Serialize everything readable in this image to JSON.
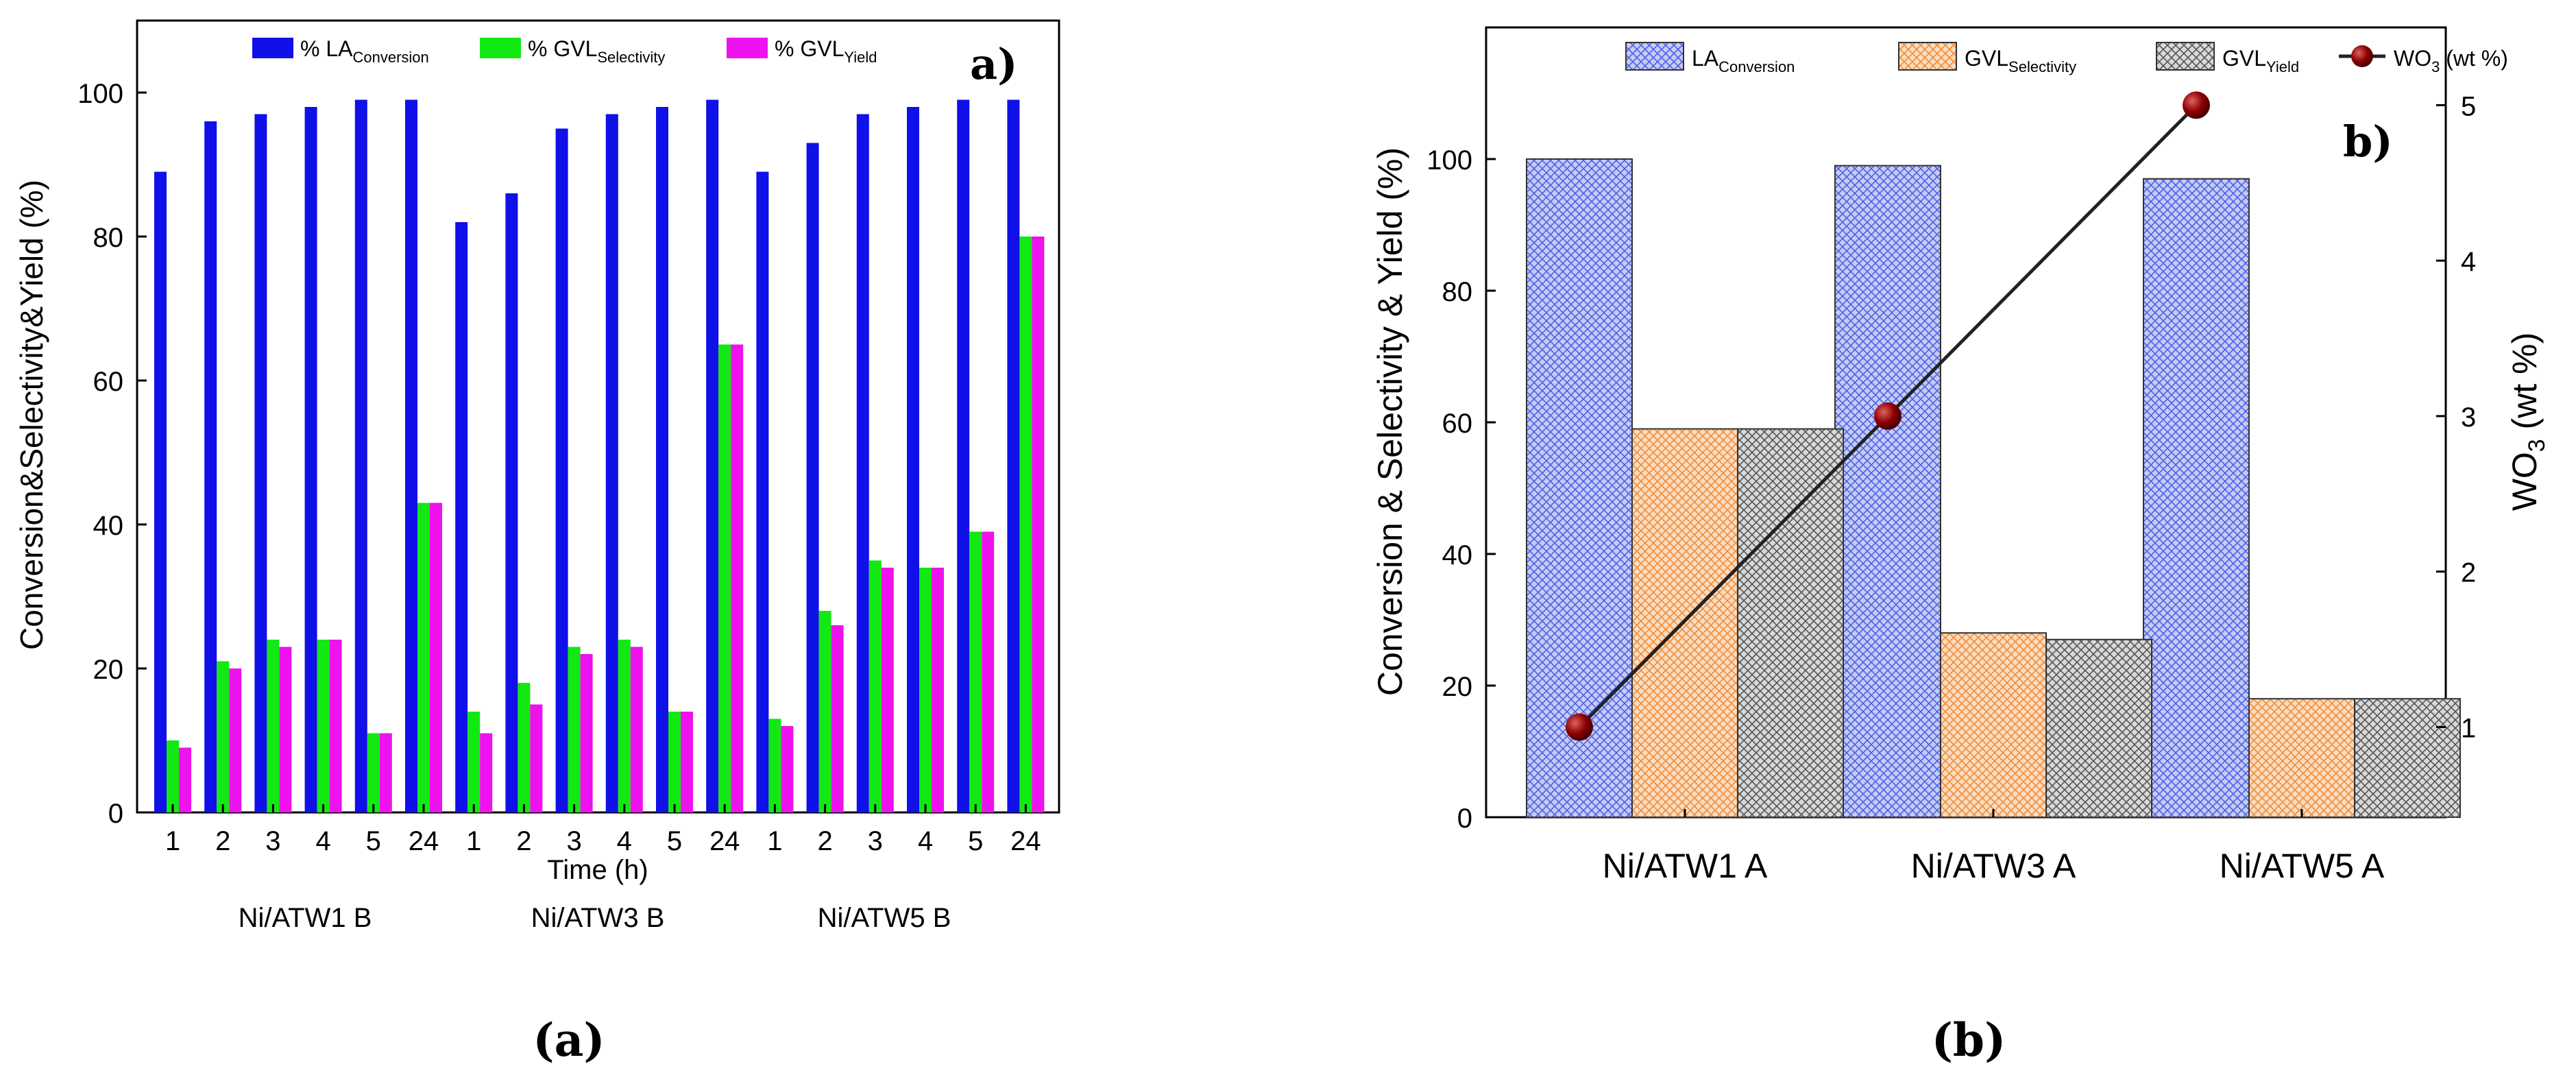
{
  "panels": {
    "a": {
      "tag": "a)",
      "caption": "(a)"
    },
    "b": {
      "tag": "b)",
      "caption": "(b)"
    }
  },
  "chart_data": [
    {
      "type": "bar",
      "ylabel": "Conversion&Selectivity&Yield (%)",
      "xlabel": "Time (h)",
      "ylim": [
        0,
        110
      ],
      "yticks": [
        0,
        20,
        40,
        60,
        80,
        100
      ],
      "legend": {
        "position": "top",
        "labels": [
          {
            "base": "% LA",
            "sub": "Conversion"
          },
          {
            "base": "% GVL",
            "sub": "Selectivity"
          },
          {
            "base": "% GVL",
            "sub": "Yield"
          }
        ]
      },
      "groups": [
        "Ni/ATW1 B",
        "Ni/ATW3 B",
        "Ni/ATW5 B"
      ],
      "categories": [
        "1",
        "2",
        "3",
        "4",
        "5",
        "24",
        "1",
        "2",
        "3",
        "4",
        "5",
        "24",
        "1",
        "2",
        "3",
        "4",
        "5",
        "24"
      ],
      "series": [
        {
          "name": "% LA Conversion",
          "color": "#1010e8",
          "values": [
            89,
            96,
            97,
            98,
            99,
            99,
            82,
            86,
            95,
            97,
            98,
            99,
            89,
            93,
            97,
            98,
            99,
            99
          ]
        },
        {
          "name": "% GVL Selectivity",
          "color": "#12e812",
          "values": [
            10,
            21,
            24,
            24,
            11,
            43,
            14,
            18,
            23,
            24,
            14,
            65,
            13,
            28,
            35,
            34,
            39,
            80
          ]
        },
        {
          "name": "% GVL Yield",
          "color": "#ee12ee",
          "values": [
            9,
            20,
            23,
            24,
            11,
            43,
            11,
            15,
            22,
            23,
            14,
            65,
            12,
            26,
            34,
            34,
            39,
            80
          ]
        }
      ]
    },
    {
      "type": "bar",
      "ylabel": "Conversion & Selectivity & Yield (%)",
      "y2label": "WO3 (wt %)",
      "ylim": [
        0,
        120
      ],
      "yticks": [
        0,
        20,
        40,
        60,
        80,
        100
      ],
      "y2lim": [
        0.42,
        5.5
      ],
      "y2ticks": [
        1,
        2,
        3,
        4,
        5
      ],
      "legend": {
        "position": "top",
        "labels": [
          {
            "base": "LA",
            "sub": "Conversion"
          },
          {
            "base": "GVL",
            "sub": "Selectivity"
          },
          {
            "base": "GVL",
            "sub": "Yield"
          },
          {
            "base": "WO",
            "sub": "3",
            "tail": " (wt %)"
          }
        ]
      },
      "categories": [
        "Ni/ATW1 A",
        "Ni/ATW3 A",
        "Ni/ATW5 A"
      ],
      "series": [
        {
          "name": "LA Conversion",
          "color": "#8a96ee",
          "values": [
            100,
            99,
            97
          ]
        },
        {
          "name": "GVL Selectivity",
          "color": "#f4a460",
          "values": [
            59,
            28,
            18
          ]
        },
        {
          "name": "GVL Yield",
          "color": "#8c8c8c",
          "values": [
            59,
            27,
            18
          ]
        }
      ],
      "line_series": {
        "name": "WO3 (wt %)",
        "axis": "right",
        "color": "#222222",
        "marker_color": "#8b0000",
        "values": [
          1,
          3,
          5
        ]
      }
    }
  ]
}
